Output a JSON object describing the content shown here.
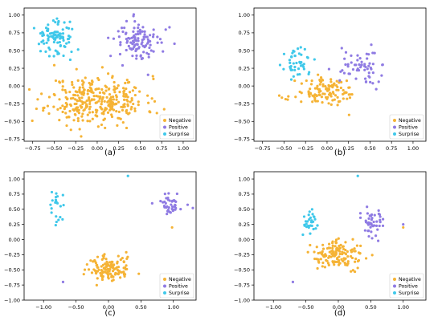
{
  "colors": {
    "Negative": "#f5b335",
    "Positive": "#8f7be3",
    "Surprise": "#3fc8ea"
  },
  "chart_data": [
    {
      "type": "scatter",
      "caption": "(a)",
      "xlim": [
        -0.85,
        1.15
      ],
      "ylim": [
        -0.78,
        1.1
      ],
      "xticks": [
        -0.75,
        -0.5,
        -0.25,
        0.0,
        0.25,
        0.5,
        0.75,
        1.0
      ],
      "yticks": [
        -0.75,
        -0.5,
        -0.25,
        0.0,
        0.25,
        0.5,
        0.75,
        1.0
      ],
      "legend": [
        "Negative",
        "Positive",
        "Surprise"
      ],
      "legend_position": "bottom-right",
      "series": [
        {
          "name": "Negative",
          "cluster": {
            "cx": 0.0,
            "cy": -0.2,
            "sx": 0.28,
            "sy": 0.17,
            "n": 330,
            "seed": 11
          }
        },
        {
          "name": "Positive",
          "cluster": {
            "cx": 0.5,
            "cy": 0.62,
            "sx": 0.14,
            "sy": 0.15,
            "n": 110,
            "seed": 12
          }
        },
        {
          "name": "Surprise",
          "cluster": {
            "cx": -0.48,
            "cy": 0.68,
            "sx": 0.11,
            "sy": 0.13,
            "n": 90,
            "seed": 13
          }
        }
      ]
    },
    {
      "type": "scatter",
      "caption": "(b)",
      "xlim": [
        -0.85,
        1.15
      ],
      "ylim": [
        -0.78,
        1.1
      ],
      "xticks": [
        -0.75,
        -0.5,
        -0.25,
        0.0,
        0.25,
        0.5,
        0.75,
        1.0
      ],
      "yticks": [
        -0.75,
        -0.5,
        -0.25,
        0.0,
        0.25,
        0.5,
        0.75,
        1.0
      ],
      "legend": [
        "Negative",
        "Positive",
        "Surprise"
      ],
      "legend_position": "bottom-right",
      "series": [
        {
          "name": "Negative",
          "cluster": {
            "cx": 0.0,
            "cy": -0.1,
            "sx": 0.18,
            "sy": 0.1,
            "n": 120,
            "seed": 21
          }
        },
        {
          "name": "Positive",
          "cluster": {
            "cx": 0.38,
            "cy": 0.28,
            "sx": 0.12,
            "sy": 0.12,
            "n": 60,
            "seed": 22
          }
        },
        {
          "name": "Surprise",
          "cluster": {
            "cx": -0.33,
            "cy": 0.32,
            "sx": 0.08,
            "sy": 0.09,
            "n": 45,
            "seed": 23
          }
        }
      ]
    },
    {
      "type": "scatter",
      "caption": "(c)",
      "xlim": [
        -1.3,
        1.35
      ],
      "ylim": [
        -1.0,
        1.12
      ],
      "xticks": [
        -1.0,
        -0.5,
        0.0,
        0.5,
        1.0
      ],
      "yticks": [
        -1.0,
        -0.75,
        -0.5,
        -0.25,
        0.0,
        0.25,
        0.5,
        0.75,
        1.0
      ],
      "legend": [
        "Negative",
        "Positive",
        "Surprise"
      ],
      "legend_position": "bottom-right",
      "series": [
        {
          "name": "Negative",
          "cluster": {
            "cx": 0.0,
            "cy": -0.48,
            "sx": 0.17,
            "sy": 0.11,
            "n": 130,
            "seed": 31
          },
          "extra": [
            [
              0.98,
              0.2
            ]
          ]
        },
        {
          "name": "Positive",
          "cluster": {
            "cx": 0.95,
            "cy": 0.6,
            "sx": 0.1,
            "sy": 0.08,
            "n": 40,
            "seed": 32
          },
          "extra": [
            [
              -0.7,
              -0.7
            ],
            [
              1.3,
              0.52
            ]
          ]
        },
        {
          "name": "Surprise",
          "cluster": {
            "cx": -0.8,
            "cy": 0.5,
            "sx": 0.05,
            "sy": 0.15,
            "n": 22,
            "seed": 33
          },
          "extra": [
            [
              0.3,
              1.05
            ]
          ]
        }
      ]
    },
    {
      "type": "scatter",
      "caption": "(d)",
      "xlim": [
        -1.3,
        1.35
      ],
      "ylim": [
        -1.0,
        1.12
      ],
      "xticks": [
        -1.0,
        -0.5,
        0.0,
        0.5,
        1.0
      ],
      "yticks": [
        -1.0,
        -0.75,
        -0.5,
        -0.25,
        0.0,
        0.25,
        0.5,
        0.75,
        1.0
      ],
      "legend": [
        "Negative",
        "Positive",
        "Surprise"
      ],
      "legend_position": "bottom-right",
      "series": [
        {
          "name": "Negative",
          "cluster": {
            "cx": 0.0,
            "cy": -0.25,
            "sx": 0.2,
            "sy": 0.11,
            "n": 140,
            "seed": 41
          },
          "extra": [
            [
              1.0,
              0.2
            ]
          ]
        },
        {
          "name": "Positive",
          "cluster": {
            "cx": 0.5,
            "cy": 0.3,
            "sx": 0.1,
            "sy": 0.12,
            "n": 45,
            "seed": 42
          },
          "extra": [
            [
              -0.7,
              -0.7
            ],
            [
              1.0,
              0.25
            ]
          ]
        },
        {
          "name": "Surprise",
          "cluster": {
            "cx": -0.45,
            "cy": 0.3,
            "sx": 0.06,
            "sy": 0.12,
            "n": 30,
            "seed": 43
          },
          "extra": [
            [
              0.3,
              1.05
            ]
          ]
        }
      ]
    }
  ]
}
